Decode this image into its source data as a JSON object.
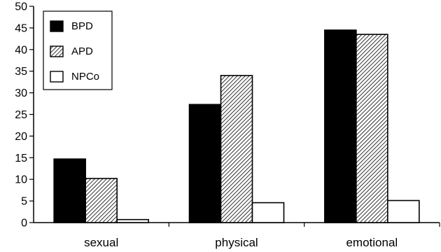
{
  "chart_data": {
    "type": "bar",
    "title": "",
    "xlabel": "",
    "ylabel": "",
    "categories": [
      "sexual",
      "physical",
      "emotional"
    ],
    "series": [
      {
        "name": "BPD",
        "values": [
          14.7,
          27.3,
          44.5
        ],
        "fill": "solid-black"
      },
      {
        "name": "APD",
        "values": [
          10.2,
          34.0,
          43.5
        ],
        "fill": "diagonal-hatch"
      },
      {
        "name": "NPCo",
        "values": [
          0.7,
          4.6,
          5.1
        ],
        "fill": "white"
      }
    ],
    "ylim": [
      0,
      50
    ],
    "yticks": [
      "0",
      "5",
      "10",
      "15",
      "20",
      "25",
      "30",
      "35",
      "40",
      "45",
      "50"
    ],
    "grid": false,
    "legend_position": "top-left",
    "colors": {
      "bar_outline": "#000000",
      "solid": "#000000",
      "hatch": "#000000",
      "background": "#ffffff"
    }
  }
}
